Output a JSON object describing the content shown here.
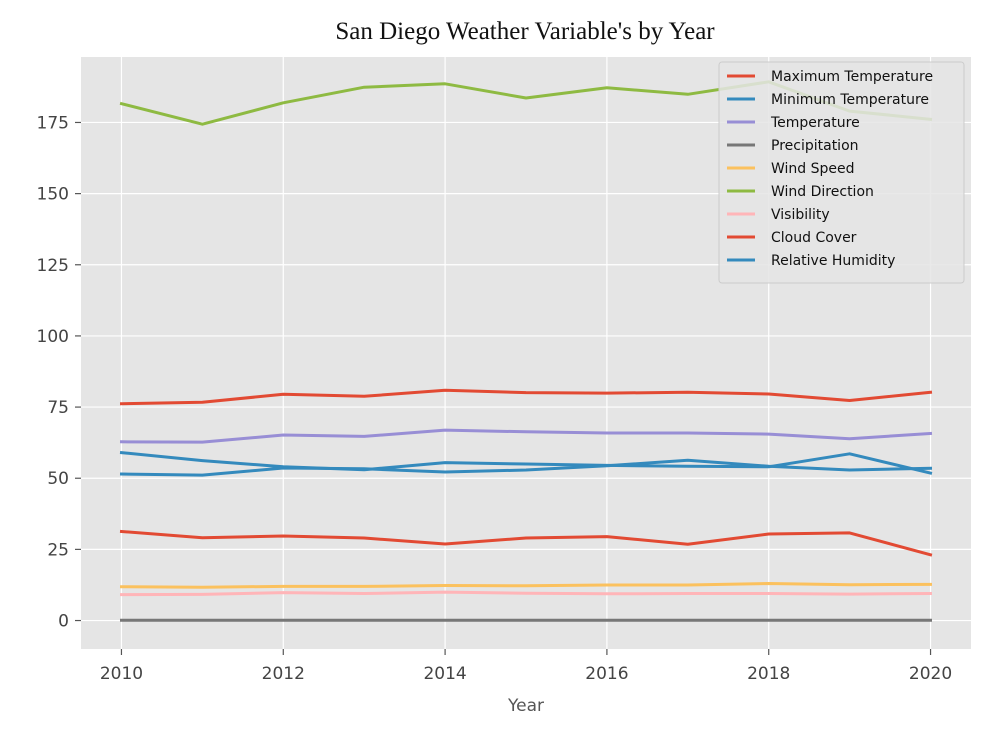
{
  "chart_data": {
    "type": "line",
    "title": "San Diego Weather Variable's by Year",
    "xlabel": "Year",
    "ylabel": "",
    "x": [
      2010,
      2011,
      2012,
      2013,
      2014,
      2015,
      2016,
      2017,
      2018,
      2019,
      2020
    ],
    "xticks": [
      2010,
      2012,
      2014,
      2016,
      2018,
      2020
    ],
    "yticks": [
      0,
      25,
      50,
      75,
      100,
      125,
      150,
      175
    ],
    "xlim": [
      2009.5,
      2020.5
    ],
    "ylim": [
      -10,
      198
    ],
    "grid": true,
    "legend_position": "top-right",
    "series": [
      {
        "name": "Maximum Temperature",
        "color": "#E24A33",
        "values": [
          76.2,
          76.7,
          79.5,
          78.8,
          80.9,
          80.1,
          79.9,
          80.2,
          79.6,
          77.3,
          80.2
        ]
      },
      {
        "name": "Minimum Temperature",
        "color": "#348ABD",
        "values": [
          59.0,
          56.2,
          54.0,
          53.0,
          55.5,
          55.0,
          54.5,
          54.2,
          54.0,
          58.6,
          51.8
        ]
      },
      {
        "name": "Temperature",
        "color": "#988ED5",
        "values": [
          62.8,
          62.7,
          65.2,
          64.7,
          66.9,
          66.3,
          65.9,
          65.9,
          65.5,
          63.9,
          65.7
        ]
      },
      {
        "name": "Precipitation",
        "color": "#777777",
        "values": [
          0.1,
          0.1,
          0.1,
          0.1,
          0.1,
          0.1,
          0.1,
          0.1,
          0.1,
          0.1,
          0.1
        ]
      },
      {
        "name": "Wind Speed",
        "color": "#FBC15E",
        "values": [
          11.9,
          11.7,
          12.0,
          12.0,
          12.3,
          12.2,
          12.5,
          12.5,
          13.0,
          12.6,
          12.7
        ]
      },
      {
        "name": "Wind Direction",
        "color": "#8EBA42",
        "values": [
          181.6,
          174.4,
          181.9,
          187.4,
          188.6,
          183.6,
          187.2,
          184.9,
          189.3,
          179.0,
          176.1
        ]
      },
      {
        "name": "Visibility",
        "color": "#FFB5B8",
        "values": [
          9.1,
          9.2,
          9.8,
          9.5,
          10.0,
          9.6,
          9.4,
          9.5,
          9.5,
          9.3,
          9.5
        ]
      },
      {
        "name": "Cloud Cover",
        "color": "#E24A33",
        "values": [
          31.3,
          29.1,
          29.7,
          29.0,
          26.9,
          29.0,
          29.5,
          26.8,
          30.4,
          30.8,
          23.1
        ]
      },
      {
        "name": "Relative Humidity",
        "color": "#348ABD",
        "values": [
          51.5,
          51.1,
          53.6,
          53.3,
          52.2,
          52.9,
          54.4,
          56.3,
          54.2,
          52.9,
          53.5
        ]
      }
    ]
  }
}
